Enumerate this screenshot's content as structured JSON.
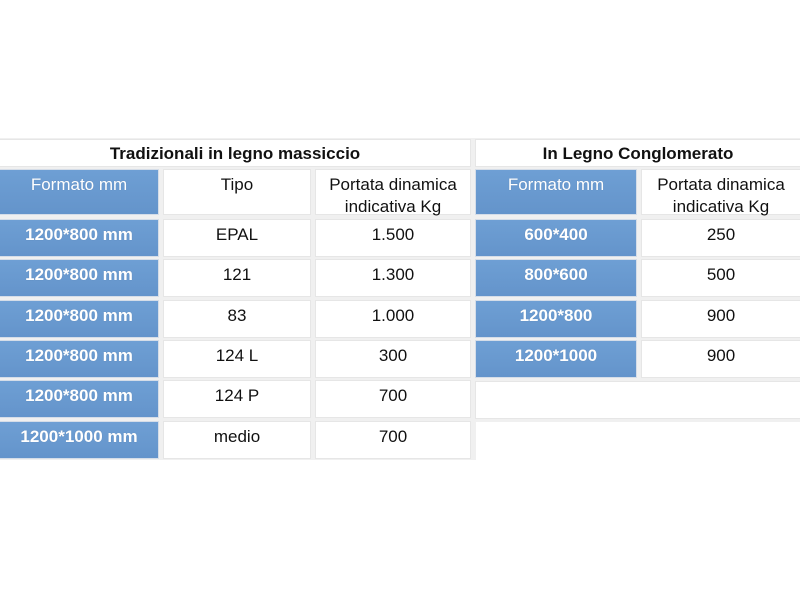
{
  "left_table": {
    "title": "Tradizionali in legno massiccio",
    "headers": [
      "Formato mm",
      "Tipo",
      "Portata dinamica indicativa Kg"
    ],
    "rows": [
      [
        "1200*800  mm",
        "EPAL",
        "1.500"
      ],
      [
        "1200*800  mm",
        "121",
        "1.300"
      ],
      [
        "1200*800  mm",
        "83",
        "1.000"
      ],
      [
        "1200*800  mm",
        "124 L",
        "300"
      ],
      [
        "1200*800  mm",
        "124 P",
        "700"
      ],
      [
        "1200*1000  mm",
        "medio",
        "700"
      ]
    ]
  },
  "right_table": {
    "title": "In Legno Conglomerato",
    "headers": [
      "Formato mm",
      "Portata dinamica indicativa Kg"
    ],
    "rows": [
      [
        "600*400",
        "250"
      ],
      [
        "800*600",
        "500"
      ],
      [
        "1200*800",
        "900"
      ],
      [
        "1200*1000",
        "900"
      ]
    ]
  }
}
